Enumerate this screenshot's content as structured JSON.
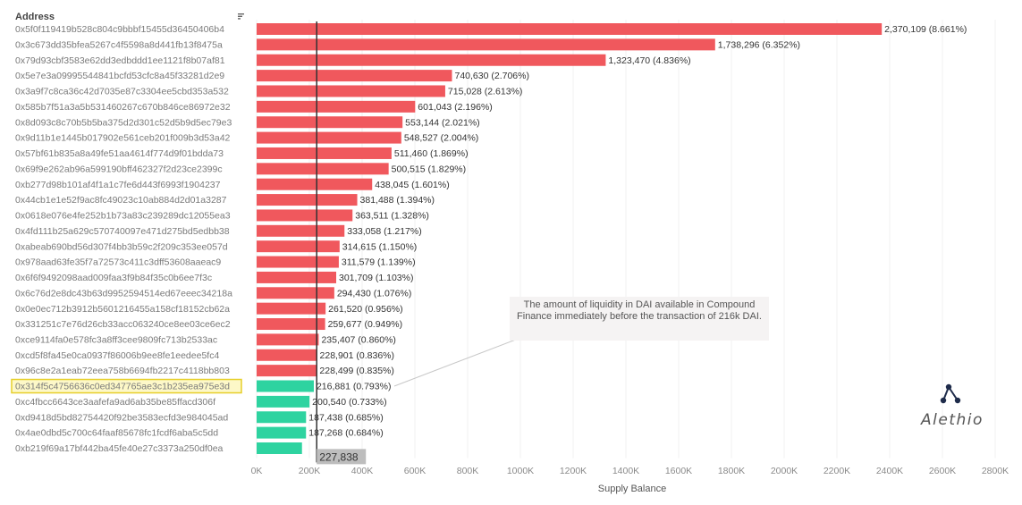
{
  "chart_data": {
    "type": "bar",
    "orientation": "horizontal",
    "header": "Address",
    "xlabel": "Supply Balance",
    "xlim": [
      0,
      2800000
    ],
    "xticks": [
      "0K",
      "200K",
      "400K",
      "600K",
      "800K",
      "1000K",
      "1200K",
      "1400K",
      "1600K",
      "1800K",
      "2000K",
      "2200K",
      "2400K",
      "2600K",
      "2800K"
    ],
    "reference_line": 227838,
    "reference_label": "227,838",
    "highlighted_address": "0x314f5c4756636c0ed347765ae3c1b235ea975e3d",
    "annotation": "The amount of liquidity in DAI available in Compound Finance immediately before the transaction of 216k DAI.",
    "colors": {
      "above": "#f0585d",
      "below": "#2ed3a0",
      "highlight_border": "#e6cf2a",
      "highlight_fill": "#fdf8c8",
      "reference": "#333333"
    },
    "bars": [
      {
        "address": "0x5f0f119419b528c804c9bbbf15455d36450406b4",
        "value": 2370109,
        "label": "2,370,109 (8.661%)"
      },
      {
        "address": "0x3c673dd35bfea5267c4f5598a8d441fb13f8475a",
        "value": 1738296,
        "label": "1,738,296 (6.352%)"
      },
      {
        "address": "0x79d93cbf3583e62dd3edbddd1ee1121f8b07af81",
        "value": 1323470,
        "label": "1,323,470 (4.836%)"
      },
      {
        "address": "0x5e7e3a09995544841bcfd53cfc8a45f33281d2e9",
        "value": 740630,
        "label": "740,630 (2.706%)"
      },
      {
        "address": "0x3a9f7c8ca36c42d7035e87c3304ee5cbd353a532",
        "value": 715028,
        "label": "715,028 (2.613%)"
      },
      {
        "address": "0x585b7f51a3a5b531460267c670b846ce86972e32",
        "value": 601043,
        "label": "601,043 (2.196%)"
      },
      {
        "address": "0x8d093c8c70b5b5ba375d2d301c52d5b9d5ec79e3",
        "value": 553144,
        "label": "553,144 (2.021%)"
      },
      {
        "address": "0x9d11b1e1445b017902e561ceb201f009b3d53a42",
        "value": 548527,
        "label": "548,527 (2.004%)"
      },
      {
        "address": "0x57bf61b835a8a49fe51aa4614f774d9f01bdda73",
        "value": 511460,
        "label": "511,460 (1.869%)"
      },
      {
        "address": "0x69f9e262ab96a599190bff462327f2d23ce2399c",
        "value": 500515,
        "label": "500,515 (1.829%)"
      },
      {
        "address": "0xb277d98b101af4f1a1c7fe6d443f6993f1904237",
        "value": 438045,
        "label": "438,045 (1.601%)"
      },
      {
        "address": "0x44cb1e1e52f9ac8fc49023c10ab884d2d01a3287",
        "value": 381488,
        "label": "381,488 (1.394%)"
      },
      {
        "address": "0x0618e076e4fe252b1b73a83c239289dc12055ea3",
        "value": 363511,
        "label": "363,511 (1.328%)"
      },
      {
        "address": "0x4fd111b25a629c570740097e471d275bd5edbb38",
        "value": 333058,
        "label": "333,058 (1.217%)"
      },
      {
        "address": "0xabeab690bd56d307f4bb3b59c2f209c353ee057d",
        "value": 314615,
        "label": "314,615 (1.150%)"
      },
      {
        "address": "0x978aad63fe35f7a72573c411c3dff53608aaeac9",
        "value": 311579,
        "label": "311,579 (1.139%)"
      },
      {
        "address": "0x6f6f9492098aad009faa3f9b84f35c0b6ee7f3c",
        "value": 301709,
        "label": "301,709 (1.103%)"
      },
      {
        "address": "0x6c76d2e8dc43b63d9952594514ed67eeec34218a",
        "value": 294430,
        "label": "294,430 (1.076%)"
      },
      {
        "address": "0x0e0ec712b3912b5601216455a158cf18152cb62a",
        "value": 261520,
        "label": "261,520 (0.956%)"
      },
      {
        "address": "0x331251c7e76d26cb33acc063240ce8ee03ce6ec2",
        "value": 259677,
        "label": "259,677 (0.949%)"
      },
      {
        "address": "0xce9114fa0e578fc3a8ff3cee9809fc713b2533ac",
        "value": 235407,
        "label": "235,407 (0.860%)"
      },
      {
        "address": "0xcd5f8fa45e0ca0937f86006b9ee8fe1eedee5fc4",
        "value": 228901,
        "label": "228,901 (0.836%)"
      },
      {
        "address": "0x96c8e2a1eab72eea758b6694fb2217c4118bb803",
        "value": 228499,
        "label": "228,499 (0.835%)"
      },
      {
        "address": "0x314f5c4756636c0ed347765ae3c1b235ea975e3d",
        "value": 216881,
        "label": "216,881 (0.793%)"
      },
      {
        "address": "0xc4fbcc6643ce3aafefa9ad6ab35be85ffacd306f",
        "value": 200540,
        "label": "200,540 (0.733%)"
      },
      {
        "address": "0xd9418d5bd82754420f92be3583ecfd3e984045ad",
        "value": 187438,
        "label": "187,438 (0.685%)"
      },
      {
        "address": "0x4ae0dbd5c700c64faaf85678fc1fcdf6aba5c5dd",
        "value": 187268,
        "label": "187,268 (0.684%)"
      },
      {
        "address": "0xb219f69a17bf442ba45fe40e27c3373a250df0ea",
        "value": 172000,
        "label": ""
      }
    ]
  },
  "brand": {
    "name": "Alethio"
  }
}
